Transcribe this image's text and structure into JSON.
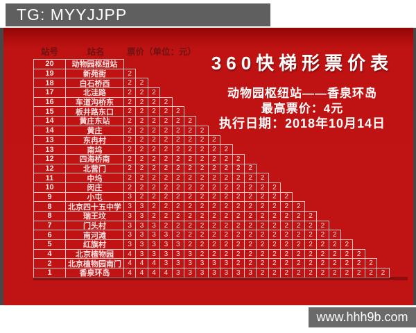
{
  "watermarks": {
    "top": "TG: MYYJJPP",
    "bottom": "www.hhh9b.com"
  },
  "title": {
    "main": "360快梯形票价表",
    "route": "动物园枢纽站——香泉环岛",
    "max_fare": "最高票价：4元",
    "effective_date": "执行日期：2018年10月14日"
  },
  "table": {
    "header": {
      "station_no": "站号",
      "station_name": "站名",
      "fare": "票价（单位：元）"
    },
    "fare_unit": "元",
    "max_fare_value": 4
  },
  "stations": [
    {
      "no": "20",
      "name": "动物园枢纽站",
      "fares": []
    },
    {
      "no": "19",
      "name": "新苑街",
      "fares": [
        2
      ]
    },
    {
      "no": "18",
      "name": "白石桥西",
      "fares": [
        2,
        2
      ]
    },
    {
      "no": "17",
      "name": "北洼路",
      "fares": [
        2,
        2,
        2
      ]
    },
    {
      "no": "16",
      "name": "车道沟桥东",
      "fares": [
        2,
        2,
        2,
        2
      ]
    },
    {
      "no": "15",
      "name": "板井路东口",
      "fares": [
        2,
        2,
        2,
        2,
        2
      ]
    },
    {
      "no": "14",
      "name": "黄庄东站",
      "fares": [
        2,
        2,
        2,
        2,
        2,
        2
      ]
    },
    {
      "no": "14",
      "name": "黄庄",
      "fares": [
        2,
        2,
        2,
        2,
        2,
        2,
        2
      ]
    },
    {
      "no": "13",
      "name": "东冉村",
      "fares": [
        2,
        2,
        2,
        2,
        2,
        2,
        2,
        2
      ]
    },
    {
      "no": "13",
      "name": "南坞",
      "fares": [
        2,
        2,
        2,
        2,
        2,
        2,
        2,
        2,
        2
      ]
    },
    {
      "no": "12",
      "name": "四海桥南",
      "fares": [
        2,
        2,
        2,
        2,
        2,
        2,
        2,
        2,
        2,
        2
      ]
    },
    {
      "no": "12",
      "name": "北营门",
      "fares": [
        2,
        2,
        2,
        2,
        2,
        2,
        2,
        2,
        2,
        2,
        2
      ]
    },
    {
      "no": "11",
      "name": "中坞",
      "fares": [
        2,
        2,
        2,
        2,
        2,
        2,
        2,
        2,
        2,
        2,
        2,
        2
      ]
    },
    {
      "no": "10",
      "name": "闵庄",
      "fares": [
        2,
        2,
        2,
        2,
        2,
        2,
        2,
        2,
        2,
        2,
        2,
        2,
        2
      ]
    },
    {
      "no": "9",
      "name": "小屯",
      "fares": [
        3,
        2,
        2,
        2,
        2,
        2,
        2,
        2,
        2,
        2,
        2,
        2,
        2,
        2
      ]
    },
    {
      "no": "8",
      "name": "北京四十五中学",
      "fares": [
        3,
        3,
        2,
        2,
        2,
        2,
        2,
        2,
        2,
        2,
        2,
        2,
        2,
        2,
        2
      ]
    },
    {
      "no": "8",
      "name": "瑞王坟",
      "fares": [
        3,
        3,
        2,
        2,
        2,
        2,
        2,
        2,
        2,
        2,
        2,
        2,
        2,
        2,
        2,
        2
      ]
    },
    {
      "no": "7",
      "name": "门头村",
      "fares": [
        3,
        3,
        3,
        2,
        2,
        2,
        2,
        2,
        2,
        2,
        2,
        2,
        2,
        2,
        2,
        2,
        2
      ]
    },
    {
      "no": "6",
      "name": "南河滩",
      "fares": [
        3,
        3,
        3,
        3,
        2,
        2,
        2,
        2,
        2,
        2,
        2,
        2,
        2,
        2,
        2,
        2,
        2,
        2
      ]
    },
    {
      "no": "5",
      "name": "红旗村",
      "fares": [
        3,
        3,
        3,
        3,
        3,
        2,
        2,
        2,
        2,
        2,
        2,
        2,
        2,
        2,
        2,
        2,
        2,
        2,
        2
      ]
    },
    {
      "no": "4",
      "name": "北京植物园",
      "fares": [
        4,
        3,
        3,
        3,
        3,
        3,
        2,
        2,
        2,
        2,
        2,
        2,
        2,
        2,
        2,
        2,
        2,
        2,
        2,
        2
      ]
    },
    {
      "no": "2",
      "name": "北京植物园南门",
      "fares": [
        4,
        4,
        4,
        3,
        3,
        3,
        3,
        3,
        3,
        2,
        2,
        2,
        2,
        2,
        2,
        2,
        2,
        2,
        2,
        2,
        2
      ]
    },
    {
      "no": "1",
      "name": "香泉环岛",
      "fares": [
        4,
        4,
        4,
        4,
        3,
        3,
        3,
        3,
        3,
        3,
        3,
        2,
        2,
        2,
        2,
        2,
        2,
        2,
        2,
        2,
        2,
        2
      ]
    }
  ],
  "colors": {
    "card_red": "#c01414",
    "card_red_dark_top": "#8f0606",
    "watermark_bar_gray": "#5f5f5f",
    "url_bar_gray": "#6a6a6a",
    "table_border_pink": "#eec6c6",
    "cell_text_pink_white": "#ffe3e3",
    "header_text_maroon": "#6f1111",
    "title_white": "#ffffff",
    "edge_strip_gray": "#474747"
  }
}
